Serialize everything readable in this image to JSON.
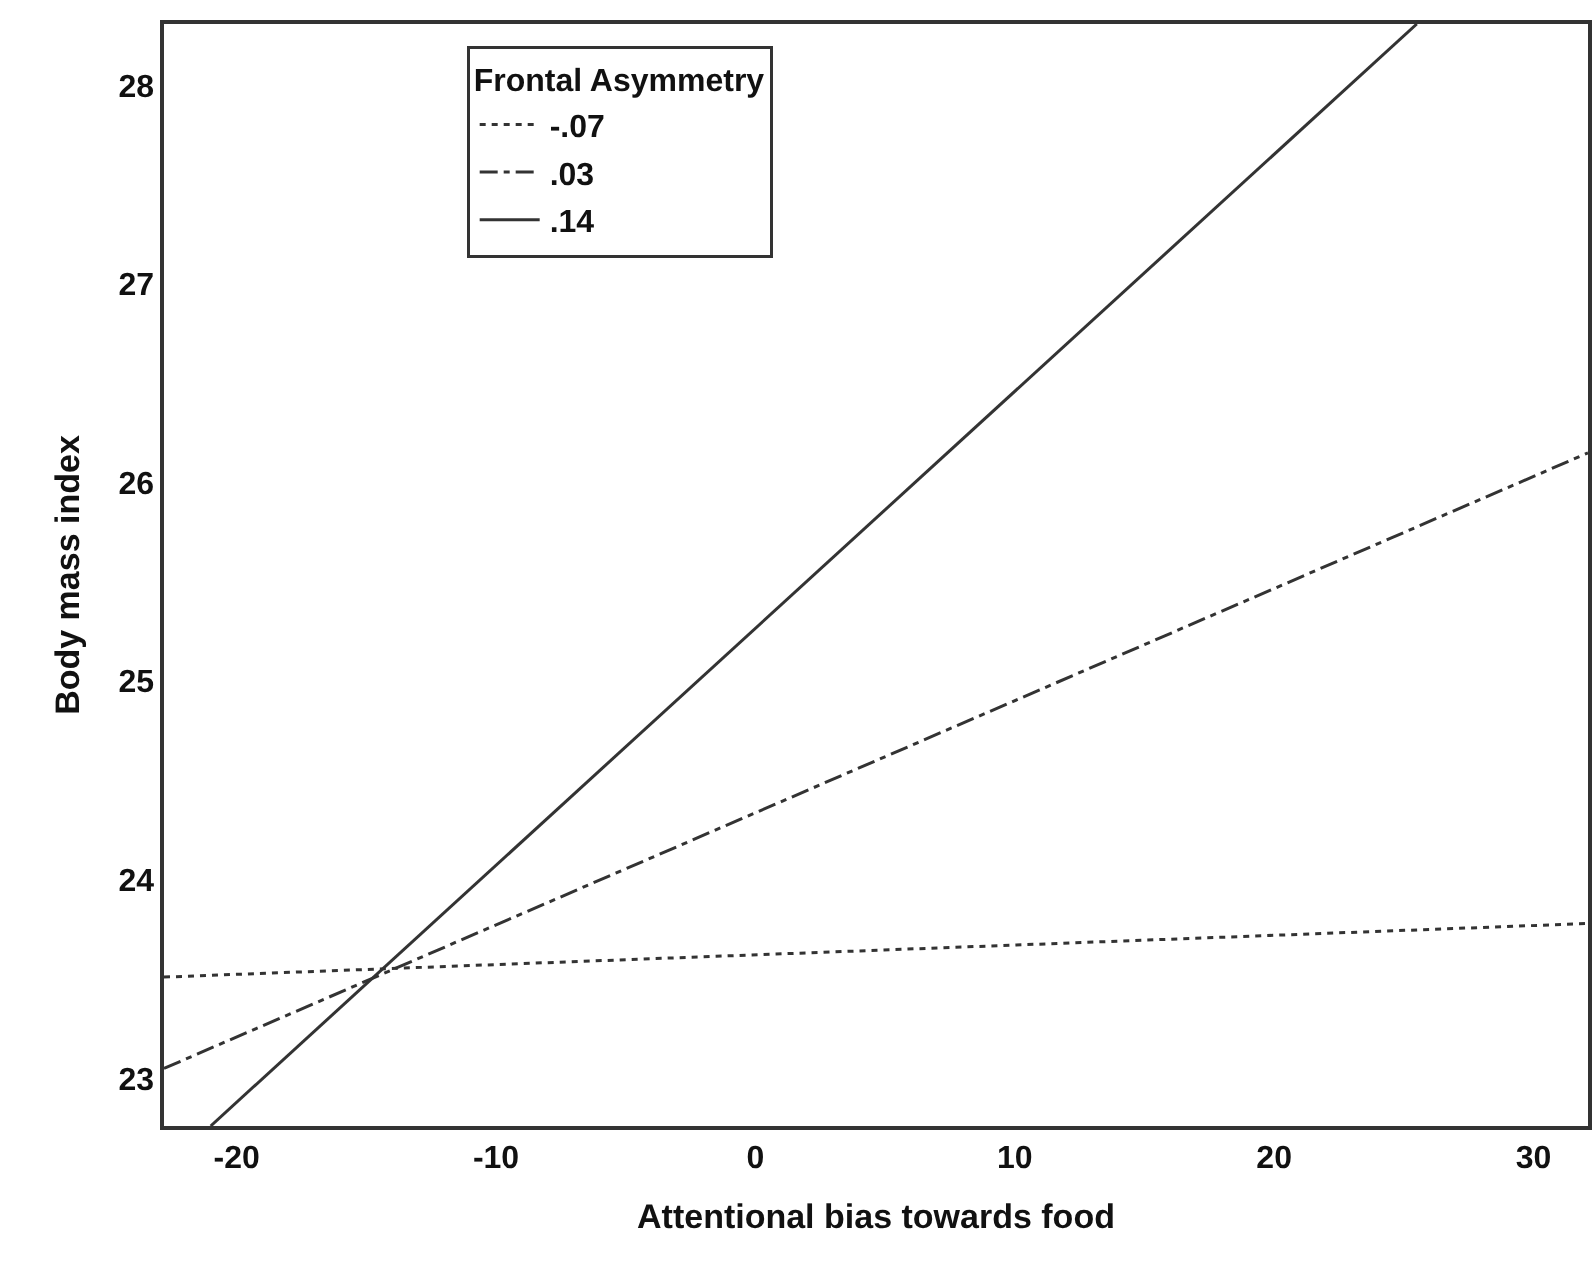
{
  "chart_data": {
    "type": "line",
    "xlabel": "Attentional bias towards food",
    "ylabel": "Body mass index",
    "legend_title": "Frontal Asymmetry",
    "xlim": [
      -22.8,
      32.1
    ],
    "ylim": [
      22.76,
      28.31
    ],
    "xticks": [
      -20,
      -10,
      0,
      10,
      20,
      30
    ],
    "yticks": [
      23,
      24,
      25,
      26,
      27,
      28
    ],
    "legend": "top",
    "marker": "none",
    "series": [
      {
        "name": "-.07",
        "color": "#333333",
        "line_style": "dotted",
        "x": [
          -22.8,
          32.1
        ],
        "values": [
          23.51,
          23.78
        ]
      },
      {
        "name": ".03",
        "color": "#333333",
        "line_style": "dashdot",
        "x": [
          -22.8,
          32.1
        ],
        "values": [
          23.05,
          26.15
        ]
      },
      {
        "name": ".14",
        "color": "#333333",
        "line_style": "solid",
        "x": [
          -21.0,
          25.5
        ],
        "values": [
          22.76,
          28.31
        ]
      }
    ]
  }
}
